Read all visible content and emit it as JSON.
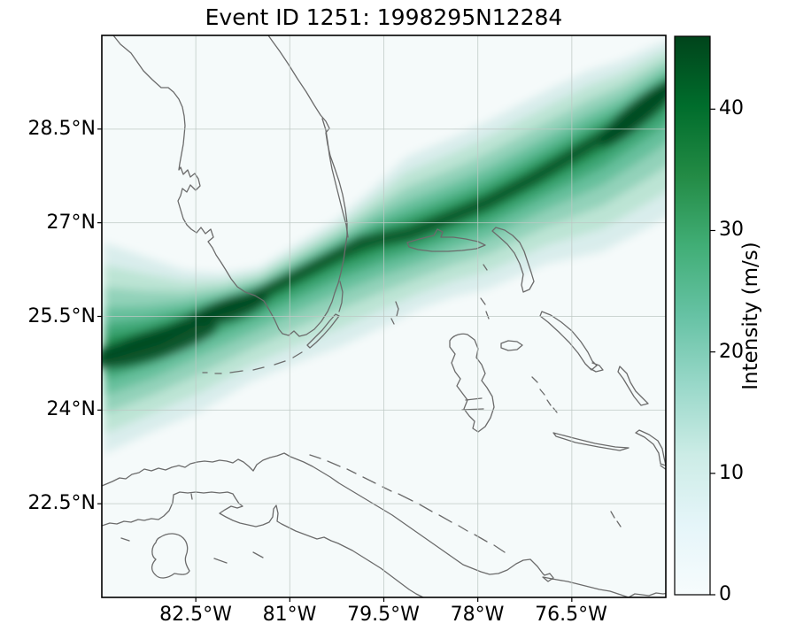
{
  "chart_data": {
    "type": "heatmap",
    "title": "Event ID 1251: 1998295N12284",
    "event": {
      "event_id": "1251",
      "storm_id": "1998295N12284"
    },
    "geo_extent": {
      "lon_min": -84.0,
      "lon_max": -75.0,
      "lat_min": 21.0,
      "lat_max": 30.0
    },
    "grid": "on",
    "x_ticks": [
      {
        "lon": -82.5,
        "label": "82.5°W"
      },
      {
        "lon": -81.0,
        "label": "81°W"
      },
      {
        "lon": -79.5,
        "label": "79.5°W"
      },
      {
        "lon": -78.0,
        "label": "78°W"
      },
      {
        "lon": -76.5,
        "label": "76.5°W"
      }
    ],
    "y_ticks": [
      {
        "lat": 28.5,
        "label": "28.5°N"
      },
      {
        "lat": 27.0,
        "label": "27°N"
      },
      {
        "lat": 25.5,
        "label": "25.5°N"
      },
      {
        "lat": 24.0,
        "label": "24°N"
      },
      {
        "lat": 22.5,
        "label": "22.5°N"
      }
    ],
    "colorbar": {
      "label": "Intensity (m/s)",
      "ticks": [
        "0",
        "10",
        "20",
        "30",
        "40"
      ],
      "tick_values": [
        0,
        10,
        20,
        30,
        40
      ],
      "vmin": 0,
      "vmax": 46,
      "colormap": "BuGn",
      "stops": [
        "#f7fcfd",
        "#e5f5f9",
        "#ccece6",
        "#99d8c9",
        "#66c2a4",
        "#41ae76",
        "#238b45",
        "#006d2c",
        "#00441b"
      ]
    },
    "track_centerline": [
      {
        "lon": -83.96,
        "lat": 24.9
      },
      {
        "lon": -83.11,
        "lat": 25.15
      },
      {
        "lon": -82.33,
        "lat": 25.55
      },
      {
        "lon": -81.62,
        "lat": 25.79
      },
      {
        "lon": -80.63,
        "lat": 26.29
      },
      {
        "lon": -79.85,
        "lat": 26.69
      },
      {
        "lon": -79.08,
        "lat": 26.83
      },
      {
        "lon": -77.87,
        "lat": 27.32
      },
      {
        "lon": -77.1,
        "lat": 27.72
      },
      {
        "lon": -75.68,
        "lat": 28.57
      },
      {
        "lon": -74.9,
        "lat": 29.21
      }
    ],
    "swath_boundary_north": [
      {
        "lon": -83.96,
        "lat": 26.68
      },
      {
        "lon": -83.32,
        "lat": 26.46
      },
      {
        "lon": -82.68,
        "lat": 26.24
      },
      {
        "lon": -82.08,
        "lat": 26.19
      },
      {
        "lon": -81.48,
        "lat": 26.29
      },
      {
        "lon": -80.84,
        "lat": 26.69
      },
      {
        "lon": -80.24,
        "lat": 27.06
      },
      {
        "lon": -79.64,
        "lat": 27.58
      },
      {
        "lon": -79.15,
        "lat": 28.05
      },
      {
        "lon": -78.41,
        "lat": 28.36
      },
      {
        "lon": -77.88,
        "lat": 28.61
      },
      {
        "lon": -77.34,
        "lat": 28.89
      },
      {
        "lon": -76.79,
        "lat": 29.17
      },
      {
        "lon": -76.25,
        "lat": 29.43
      },
      {
        "lon": -75.71,
        "lat": 29.6
      },
      {
        "lon": -75.16,
        "lat": 29.85
      },
      {
        "lon": -74.91,
        "lat": 29.94
      }
    ],
    "swath_boundary_south": [
      {
        "lon": -83.96,
        "lat": 23.3
      },
      {
        "lon": -83.18,
        "lat": 23.66
      },
      {
        "lon": -82.4,
        "lat": 23.99
      },
      {
        "lon": -81.65,
        "lat": 24.44
      },
      {
        "lon": -80.91,
        "lat": 24.75
      },
      {
        "lon": -80.21,
        "lat": 25.01
      },
      {
        "lon": -79.5,
        "lat": 25.34
      },
      {
        "lon": -78.93,
        "lat": 25.62
      },
      {
        "lon": -78.37,
        "lat": 25.82
      },
      {
        "lon": -77.84,
        "lat": 25.94
      },
      {
        "lon": -76.91,
        "lat": 26.34
      },
      {
        "lon": -76.01,
        "lat": 26.54
      },
      {
        "lon": -75.21,
        "lat": 26.96
      },
      {
        "lon": -74.91,
        "lat": 27.15
      }
    ],
    "intensity_maxima": [
      {
        "lon": -83.15,
        "lat": 25.05,
        "rx_deg": 1.05,
        "ry_deg": 0.24,
        "angle_deg": -17
      },
      {
        "lon": -81.95,
        "lat": 25.62,
        "rx_deg": 0.65,
        "ry_deg": 0.19,
        "angle_deg": -18
      },
      {
        "lon": -75.45,
        "lat": 28.75,
        "rx_deg": 0.8,
        "ry_deg": 0.2,
        "angle_deg": -40
      }
    ],
    "coastlines_visible": [
      "Florida",
      "Florida Keys",
      "Cuba",
      "Isla de la Juventud",
      "Grand Bahama",
      "Abaco",
      "Andros",
      "New Providence",
      "Eleuthera",
      "Cat Island",
      "Exuma Cays",
      "Long Island"
    ]
  }
}
